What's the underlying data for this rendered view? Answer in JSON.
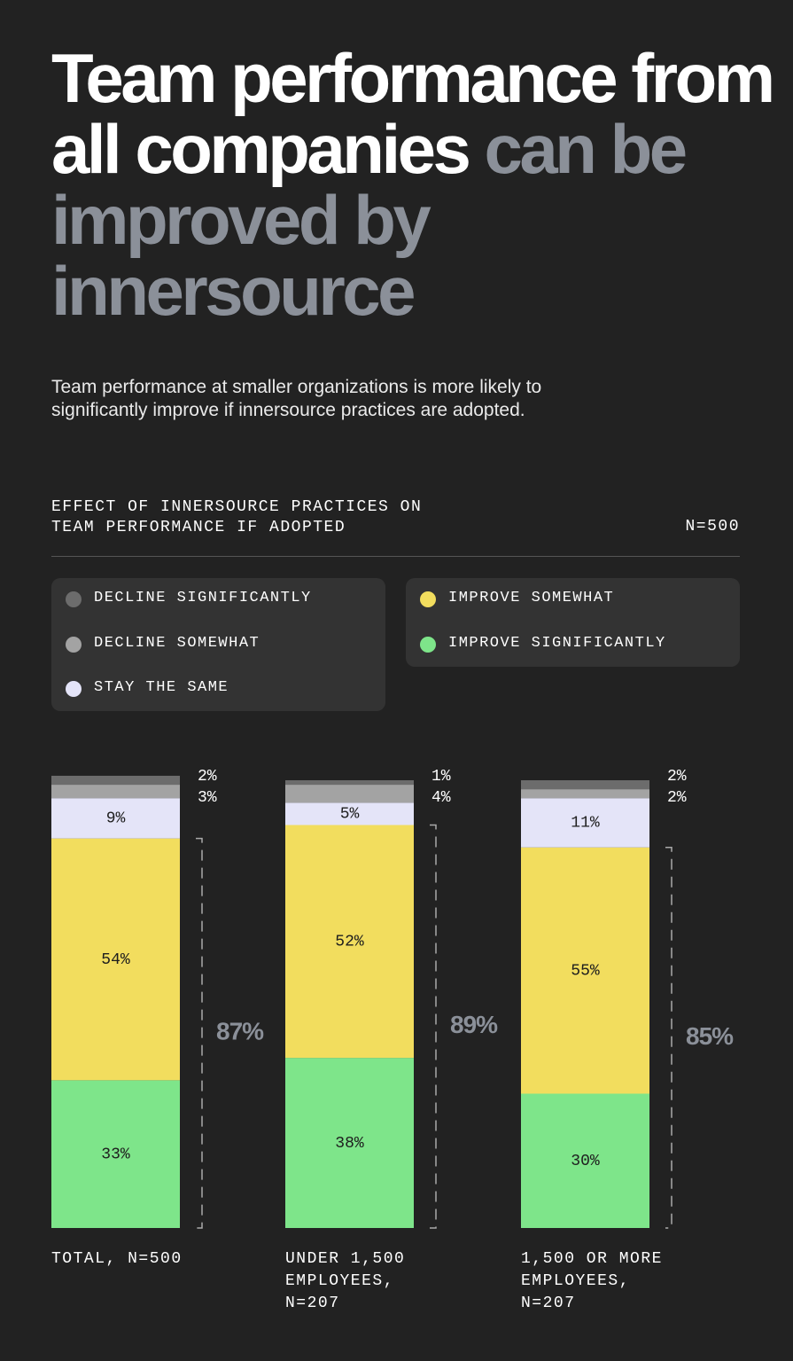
{
  "chart_data": {
    "type": "bar",
    "stacked": true,
    "title": "Team performance from all companies",
    "title_emphasis": "can be improved by innersource",
    "subtitle": "Team performance at smaller organizations is more likely to significantly improve if innersource practices are adopted.",
    "chart_title": "EFFECT OF INNERSOURCE PRACTICES ON TEAM PERFORMANCE IF ADOPTED",
    "sample_size": "N=500",
    "categories": [
      "TOTAL, N=500",
      "UNDER 1,500 EMPLOYEES, N=207",
      "1,500 OR MORE EMPLOYEES, N=207"
    ],
    "series": [
      {
        "name": "DECLINE SIGNIFICANTLY",
        "color": "#6c6c6c",
        "values": [
          2,
          1,
          2
        ],
        "value_labels": [
          "2%",
          "1%",
          "2%"
        ]
      },
      {
        "name": "DECLINE SOMEWHAT",
        "color": "#a3a3a3",
        "values": [
          3,
          4,
          2
        ],
        "value_labels": [
          "3%",
          "4%",
          "2%"
        ]
      },
      {
        "name": "STAY THE SAME",
        "color": "#e4e4f8",
        "values": [
          9,
          5,
          11
        ],
        "value_labels": [
          "9%",
          "5%",
          "11%"
        ]
      },
      {
        "name": "IMPROVE SOMEWHAT",
        "color": "#f2dd5e",
        "values": [
          54,
          52,
          55
        ],
        "value_labels": [
          "54%",
          "52%",
          "55%"
        ]
      },
      {
        "name": "IMPROVE SIGNIFICANTLY",
        "color": "#7ee58a",
        "values": [
          33,
          38,
          30
        ],
        "value_labels": [
          "33%",
          "38%",
          "30%"
        ]
      }
    ],
    "totals": {
      "values": [
        87,
        89,
        85
      ],
      "value_labels": [
        "87%",
        "89%",
        "85%"
      ]
    }
  }
}
